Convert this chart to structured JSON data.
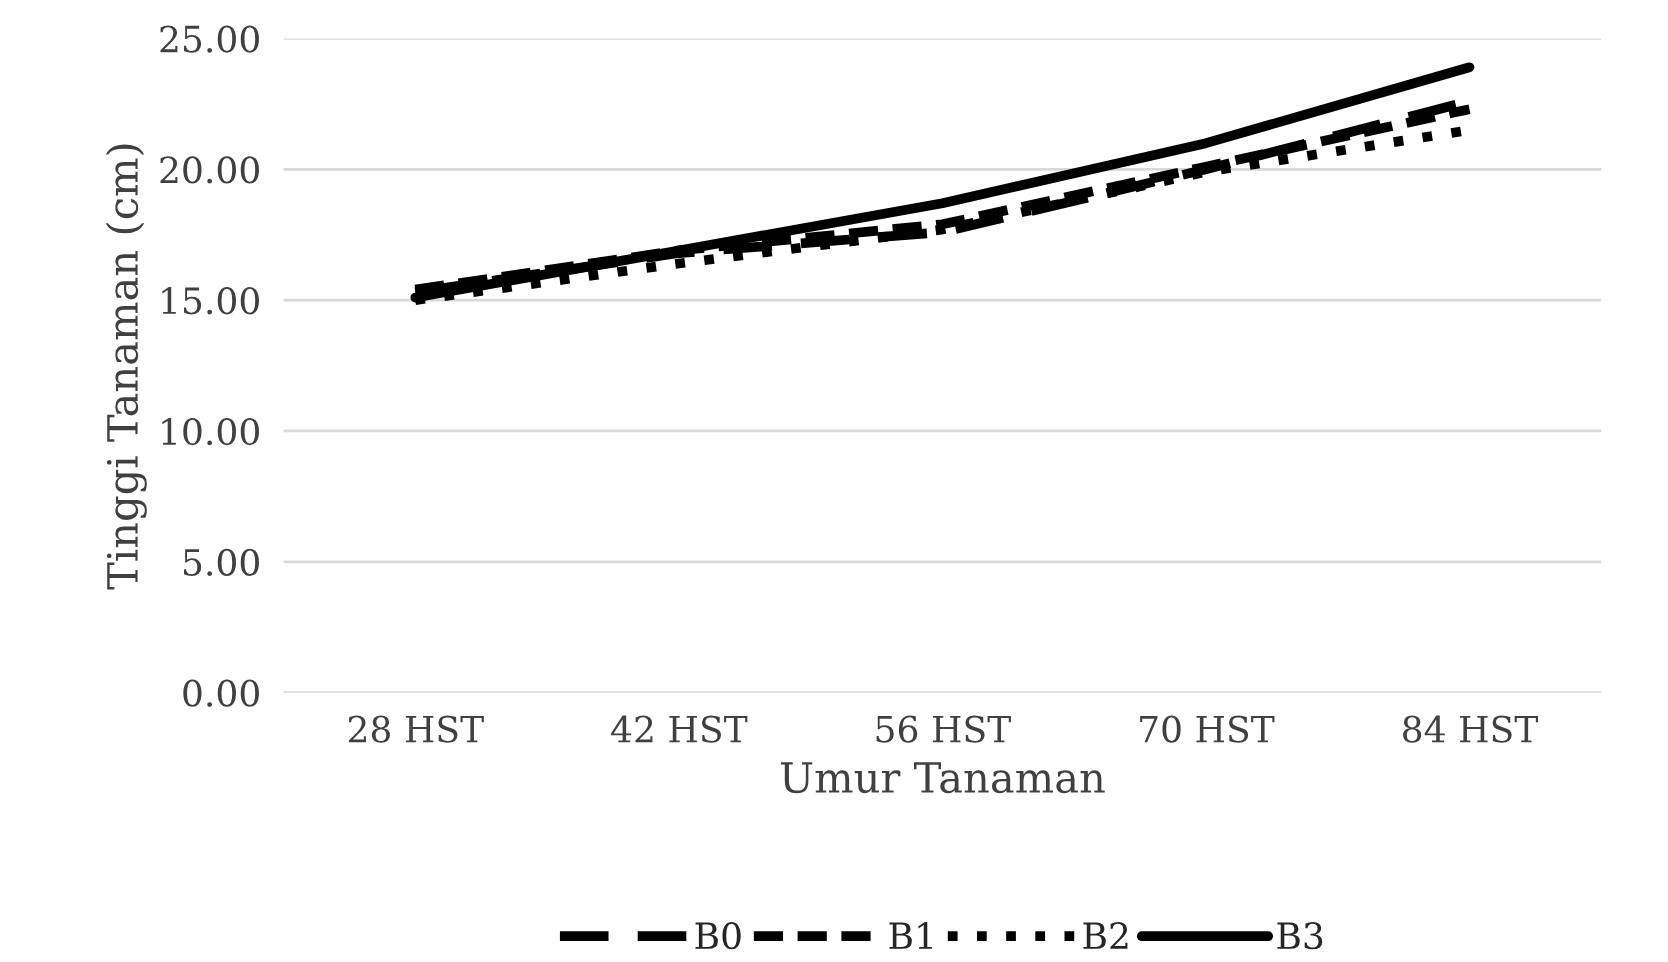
{
  "chart_data": {
    "type": "line",
    "xlabel": "Umur Tanaman",
    "ylabel": "Tinggi Tanaman (cm)",
    "categories": [
      "28 HST",
      "42 HST",
      "56 HST",
      "70 HST",
      "84 HST"
    ],
    "series": [
      {
        "name": "B0",
        "color": "#000000",
        "line_style": "longdash",
        "values": [
          15.3,
          16.8,
          17.6,
          20.0,
          22.6
        ]
      },
      {
        "name": "B1",
        "color": "#000000",
        "line_style": "dashed",
        "values": [
          15.4,
          16.9,
          17.9,
          20.1,
          22.3
        ]
      },
      {
        "name": "B2",
        "color": "#000000",
        "line_style": "dotted",
        "values": [
          15.0,
          16.4,
          17.7,
          19.9,
          21.5
        ]
      },
      {
        "name": "B3",
        "color": "#000000",
        "line_style": "solid",
        "values": [
          15.1,
          16.9,
          18.7,
          21.0,
          23.9
        ]
      }
    ],
    "ylim": [
      0,
      25
    ],
    "yticks": [
      {
        "value": 0,
        "label": "0.00"
      },
      {
        "value": 5,
        "label": "5.00"
      },
      {
        "value": 10,
        "label": "10.00"
      },
      {
        "value": 15,
        "label": "15.00"
      },
      {
        "value": 20,
        "label": "20.00"
      },
      {
        "value": 25,
        "label": "25.00"
      }
    ],
    "grid": "y",
    "legend": "bottom",
    "marker": "none"
  }
}
